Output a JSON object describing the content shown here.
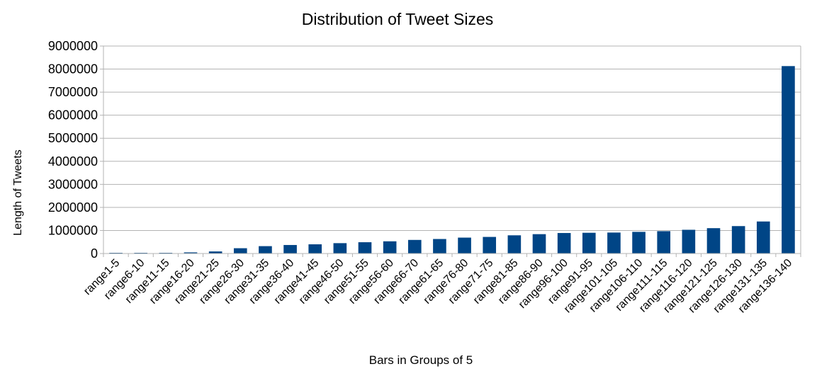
{
  "chart_data": {
    "type": "bar",
    "title": "Distribution of Tweet Sizes",
    "xlabel": "Bars in Groups of 5",
    "ylabel": "Length of Tweets",
    "ylim": [
      0,
      9000000
    ],
    "yticks": [
      "0",
      "1000000",
      "2000000",
      "3000000",
      "4000000",
      "5000000",
      "6000000",
      "7000000",
      "8000000",
      "9000000"
    ],
    "grid": true,
    "legend": "none",
    "bar_color": "#004586",
    "categories": [
      "range1-5",
      "range6-10",
      "range11-15",
      "range16-20",
      "range21-25",
      "range26-30",
      "range31-35",
      "range36-40",
      "range41-45",
      "range46-50",
      "range51-55",
      "range56-60",
      "range66-70",
      "range61-65",
      "range76-80",
      "range71-75",
      "range81-85",
      "range86-90",
      "range96-100",
      "range91-95",
      "range101-105",
      "range106-110",
      "range111-115",
      "range116-120",
      "range121-125",
      "range126-130",
      "range131-135",
      "range136-140"
    ],
    "values": [
      10000,
      15000,
      25000,
      50000,
      90000,
      230000,
      320000,
      370000,
      400000,
      450000,
      490000,
      530000,
      590000,
      630000,
      690000,
      720000,
      790000,
      840000,
      890000,
      900000,
      910000,
      940000,
      970000,
      1030000,
      1100000,
      1190000,
      1390000,
      8130000
    ]
  }
}
